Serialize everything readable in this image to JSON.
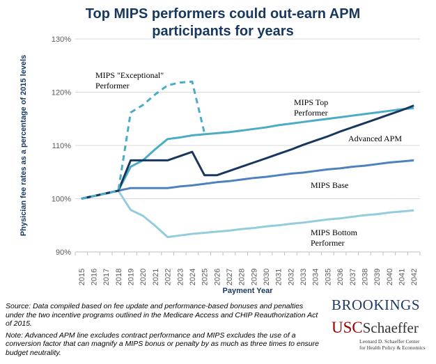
{
  "chart_data": {
    "type": "line",
    "title_lines": [
      "Top MIPS  performers could out-earn APM",
      "participants  for years"
    ],
    "xlabel": "Payment Year",
    "ylabel": "Physician fee rates as a percentage of 2015 levels",
    "ylim": [
      90,
      130
    ],
    "yticks": [
      90,
      100,
      110,
      120,
      130
    ],
    "ytick_labels": [
      "90%",
      "100%",
      "110%",
      "120%",
      "130%"
    ],
    "x": [
      "2015",
      "2016",
      "2017",
      "2018",
      "2019",
      "2020",
      "2021",
      "2022",
      "2023",
      "2024",
      "2025",
      "2026",
      "2027",
      "2028",
      "2029",
      "2030",
      "2031",
      "2032",
      "2033",
      "2034",
      "2035",
      "2036",
      "2037",
      "2038",
      "2039",
      "2040",
      "2041",
      "2042"
    ],
    "series": [
      {
        "name": "MIPS \"Exceptional\" Performer",
        "label_lines": [
          "MIPS \"Exceptional\"",
          "Performer"
        ],
        "color": "#4bacc6",
        "dash": true,
        "values": [
          100,
          100.5,
          101,
          101.5,
          116.2,
          117.6,
          119.6,
          121.3,
          121.8,
          122,
          112.3,
          null,
          null,
          null,
          null,
          null,
          null,
          null,
          null,
          null,
          null,
          null,
          null,
          null,
          null,
          null,
          null,
          null
        ]
      },
      {
        "name": "MIPS Top Performer",
        "label_lines": [
          "MIPS Top",
          "Performer"
        ],
        "color": "#4bacc6",
        "dash": false,
        "values": [
          100,
          100.5,
          101,
          101.5,
          106,
          107.2,
          109.3,
          111.2,
          111.5,
          111.9,
          112.1,
          112.3,
          112.5,
          112.8,
          113.1,
          113.4,
          113.8,
          114.1,
          114.4,
          114.7,
          115,
          115.3,
          115.6,
          115.9,
          116.2,
          116.5,
          116.8,
          117
        ]
      },
      {
        "name": "Advanced APM",
        "label_lines": [
          "Advanced APM"
        ],
        "color": "#17375e",
        "dash": false,
        "values": [
          100,
          100.5,
          101,
          101.5,
          107.2,
          107.2,
          107.2,
          107.2,
          108,
          108.8,
          104.4,
          104.4,
          105.2,
          106,
          106.8,
          107.6,
          108.4,
          109.2,
          110.1,
          110.9,
          111.7,
          112.6,
          113.4,
          114.2,
          115,
          115.8,
          116.6,
          117.5
        ]
      },
      {
        "name": "MIPS Base",
        "label_lines": [
          "MIPS Base"
        ],
        "color": "#4f81bd",
        "dash": false,
        "values": [
          100,
          100.5,
          101,
          101.5,
          102,
          102,
          102,
          102,
          102.3,
          102.5,
          102.8,
          103.1,
          103.3,
          103.6,
          103.9,
          104.1,
          104.4,
          104.7,
          104.9,
          105.2,
          105.5,
          105.7,
          106,
          106.2,
          106.5,
          106.8,
          107,
          107.2
        ]
      },
      {
        "name": "MIPS Bottom Performer",
        "label_lines": [
          "MIPS Bottom",
          "Performer"
        ],
        "color": "#93cddd",
        "dash": false,
        "values": [
          100,
          100.5,
          101,
          101.5,
          97.9,
          96.8,
          94.9,
          92.8,
          93.1,
          93.4,
          93.6,
          93.8,
          94,
          94.3,
          94.5,
          94.8,
          95,
          95.3,
          95.5,
          95.8,
          96.1,
          96.3,
          96.6,
          96.9,
          97.1,
          97.4,
          97.6,
          97.8
        ]
      }
    ]
  },
  "notes": {
    "source": "Source: Data compiled based on fee update and performance-based bonuses and penalties under the two  incentive programs outlined in the Medicare Access and CHIP Reauthorization Act of 2015.",
    "note": "Note: Advanced APM line excludes contract performance and MIPS excludes the use of a conversion factor that can magnify a MIPS  bonus or penalty by as much as three times to ensure budget neutrality."
  },
  "logos": {
    "brookings": "BROOKINGS",
    "usc": "USC",
    "schaeffer": "Schaeffer",
    "schaeffer_sub_lines": [
      "Leonard D. Schaeffer Center",
      "for Health Policy & Economics"
    ]
  },
  "colors": {
    "title": "#17375e",
    "axis_title": "#17375e",
    "grid": "#d9d9d9",
    "tick_text": "#595959"
  }
}
